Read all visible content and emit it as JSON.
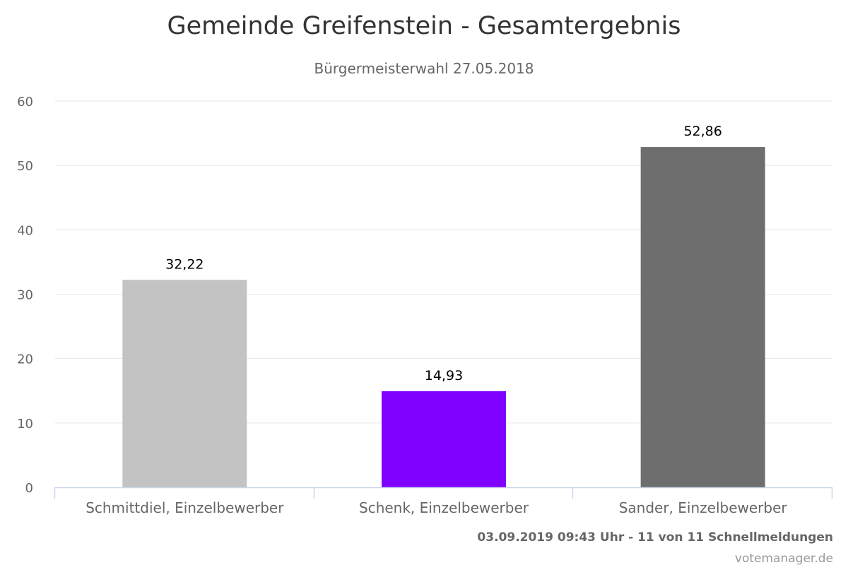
{
  "chart_data": {
    "type": "bar",
    "title": "Gemeinde Greifenstein - Gesamtergebnis",
    "subtitle": "Bürgermeisterwahl 27.05.2018",
    "categories": [
      "Schmittdiel, Einzelbewerber",
      "Schenk, Einzelbewerber",
      "Sander, Einzelbewerber"
    ],
    "values": [
      32.22,
      14.93,
      52.86
    ],
    "data_labels": [
      "32,22",
      "14,93",
      "52,86"
    ],
    "colors": [
      "#c3c3c3",
      "#8000ff",
      "#6e6e6e"
    ],
    "xlabel": "",
    "ylabel": "",
    "ylim": [
      0,
      60
    ],
    "yticks": [
      0,
      10,
      20,
      30,
      40,
      50,
      60
    ],
    "grid": true,
    "legend": "none"
  },
  "footer": {
    "status": "03.09.2019 09:43 Uhr - 11 von 11 Schnellmeldungen",
    "credit": "votemanager.de"
  }
}
